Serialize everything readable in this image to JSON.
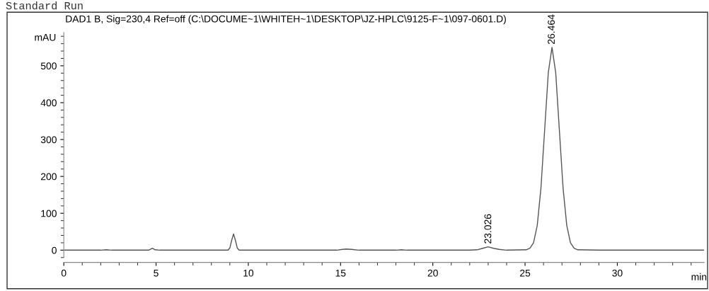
{
  "chart_data": {
    "type": "line",
    "title": "Standard Run",
    "subtitle": "DAD1 B, Sig=230,4 Ref=off (C:\\DOCUME~1\\WHITEH~1\\DESKTOP\\JZ-HPLC\\9125-F~1\\097-0601.D)",
    "xlabel": "min",
    "ylabel": "mAU",
    "series": [
      {
        "color": "#555555",
        "x": [
          0,
          2.0,
          2.3,
          2.6,
          4.6,
          4.8,
          4.95,
          5.2,
          6.8,
          8.8,
          8.9,
          9.0,
          9.1,
          9.2,
          9.3,
          9.4,
          9.5,
          9.8,
          14.8,
          15.1,
          15.3,
          15.6,
          16.0,
          18.0,
          18.3,
          18.6,
          22.0,
          22.4,
          22.7,
          23.0,
          23.3,
          23.6,
          24.0,
          25.06,
          25.26,
          25.46,
          25.66,
          25.86,
          26.06,
          26.26,
          26.46,
          26.66,
          26.86,
          27.06,
          27.26,
          27.46,
          27.66,
          27.86,
          29.0,
          34.7
        ],
        "values": [
          0,
          0,
          1,
          0,
          0,
          5,
          1,
          0,
          0,
          0,
          0,
          6,
          27,
          44,
          27,
          6,
          0,
          0,
          0,
          2,
          3,
          2,
          0,
          0,
          1,
          0,
          0,
          1,
          5,
          9,
          5,
          2,
          0,
          1,
          5,
          20,
          67,
          168,
          325,
          482,
          550,
          482,
          325,
          168,
          67,
          20,
          5,
          1,
          0,
          0
        ]
      }
    ],
    "xlim": [
      0,
      34.7
    ],
    "xticks": [
      0,
      5,
      10,
      15,
      20,
      25,
      30
    ],
    "ylim": [
      -20,
      590
    ],
    "yticks": [
      0,
      100,
      200,
      300,
      400,
      500
    ],
    "annotations": [
      {
        "text": "23.026",
        "x": 23.026,
        "y": 9
      },
      {
        "text": "26.464",
        "x": 26.464,
        "y": 550
      }
    ],
    "grid": false,
    "legend": false,
    "line_style": "solid",
    "marker": "none"
  }
}
